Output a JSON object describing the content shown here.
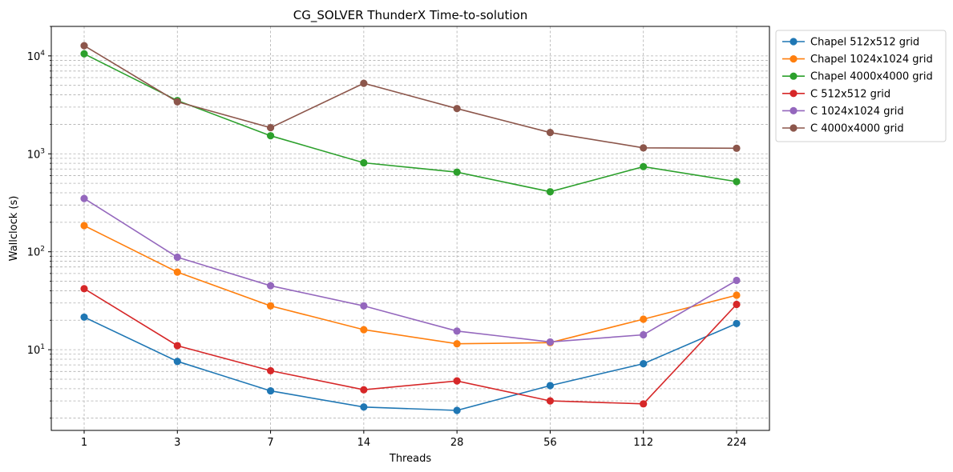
{
  "chart_data": {
    "type": "line",
    "title": "CG_SOLVER ThunderX Time-to-solution",
    "xlabel": "Threads",
    "ylabel": "Wallclock (s)",
    "yscale": "log",
    "ylim": [
      1.5,
      20000
    ],
    "grid": true,
    "legend_position": "outside-top-right",
    "categories": [
      "1",
      "3",
      "7",
      "14",
      "28",
      "56",
      "112",
      "224"
    ],
    "y_ticks": [
      {
        "value": 10,
        "label": "10",
        "sup": "1"
      },
      {
        "value": 100,
        "label": "10",
        "sup": "2"
      },
      {
        "value": 1000,
        "label": "10",
        "sup": "3"
      },
      {
        "value": 10000,
        "label": "10",
        "sup": "4"
      }
    ],
    "series": [
      {
        "name": "Chapel 512x512 grid",
        "color": "#1f77b4",
        "values": [
          21.5,
          7.6,
          3.8,
          2.6,
          2.4,
          4.3,
          7.2,
          18.5
        ]
      },
      {
        "name": "Chapel 1024x1024 grid",
        "color": "#ff7f0e",
        "values": [
          185,
          62,
          28,
          16,
          11.5,
          11.8,
          20.5,
          36
        ]
      },
      {
        "name": "Chapel 4000x4000 grid",
        "color": "#2ca02c",
        "values": [
          10500,
          3500,
          1530,
          810,
          650,
          410,
          740,
          520
        ]
      },
      {
        "name": "C 512x512 grid",
        "color": "#d62728",
        "values": [
          42,
          11,
          6.1,
          3.9,
          4.8,
          3.0,
          2.8,
          29
        ]
      },
      {
        "name": "C 1024x1024 grid",
        "color": "#9467bd",
        "values": [
          350,
          88,
          45,
          28,
          15.5,
          12,
          14.2,
          51
        ]
      },
      {
        "name": "C 4000x4000 grid",
        "color": "#8c564b",
        "values": [
          12700,
          3400,
          1850,
          5250,
          2900,
          1650,
          1150,
          1140
        ]
      }
    ]
  }
}
